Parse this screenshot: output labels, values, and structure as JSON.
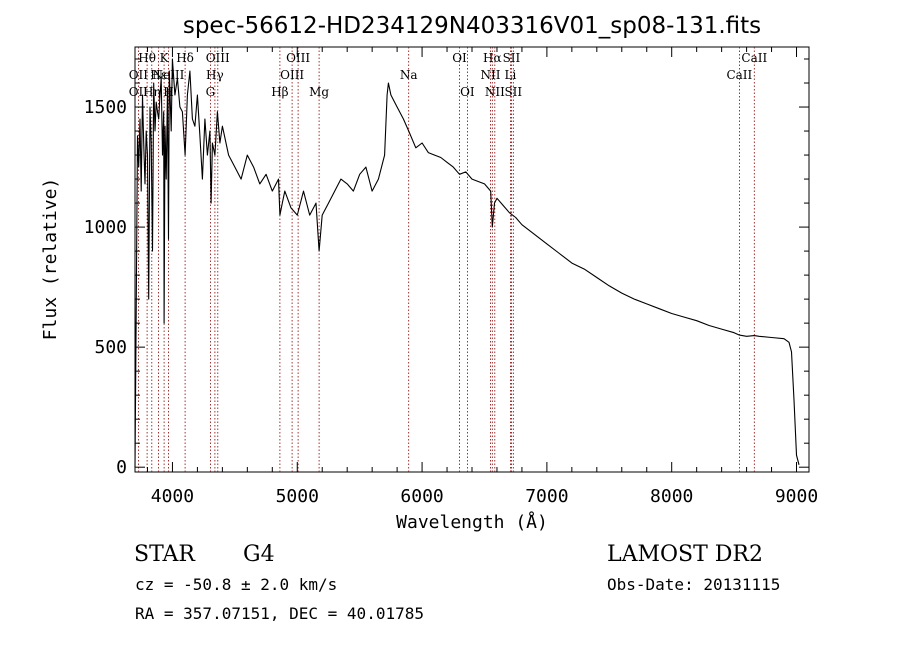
{
  "chart_data": {
    "type": "line",
    "title": "spec-56612-HD234129N403316V01_sp08-131.fits",
    "xlabel": "Wavelength (Å)",
    "ylabel": "Flux (relative)",
    "xlim": [
      3700,
      9100
    ],
    "ylim": [
      -20,
      1750
    ],
    "xticks": [
      4000,
      5000,
      6000,
      7000,
      8000,
      9000
    ],
    "yticks": [
      0,
      500,
      1000,
      1500
    ],
    "grid": false,
    "colors": {
      "line": "#000000",
      "marker": "#8b0000",
      "text": "#000000"
    },
    "series": [
      {
        "x": [
          3700,
          3710,
          3720,
          3730,
          3740,
          3750,
          3760,
          3770,
          3780,
          3790,
          3800,
          3810,
          3820,
          3830,
          3840,
          3850,
          3860,
          3870,
          3880,
          3890,
          3900,
          3910,
          3920,
          3930,
          3933,
          3940,
          3950,
          3960,
          3968,
          3975,
          3990,
          4000,
          4020,
          4040,
          4060,
          4080,
          4101,
          4120,
          4140,
          4160,
          4180,
          4200,
          4220,
          4240,
          4260,
          4280,
          4300,
          4310,
          4320,
          4340,
          4360,
          4380,
          4400,
          4450,
          4500,
          4550,
          4600,
          4650,
          4700,
          4750,
          4800,
          4850,
          4861,
          4880,
          4900,
          4950,
          5000,
          5050,
          5100,
          5150,
          5175,
          5200,
          5250,
          5300,
          5350,
          5400,
          5450,
          5500,
          5550,
          5600,
          5650,
          5700,
          5720,
          5730,
          5750,
          5800,
          5850,
          5893,
          5950,
          6000,
          6050,
          6100,
          6150,
          6200,
          6250,
          6300,
          6350,
          6400,
          6450,
          6500,
          6550,
          6563,
          6580,
          6600,
          6650,
          6700,
          6750,
          6800,
          6900,
          7000,
          7100,
          7200,
          7300,
          7400,
          7500,
          7600,
          7700,
          7800,
          7900,
          8000,
          8100,
          8200,
          8300,
          8400,
          8500,
          8542,
          8600,
          8662,
          8700,
          8800,
          8900,
          8940,
          8960,
          8980,
          9000,
          9020
        ],
        "y": [
          0,
          650,
          1380,
          1250,
          1450,
          1150,
          1550,
          1350,
          1180,
          1400,
          1300,
          700,
          1500,
          1350,
          900,
          1600,
          1400,
          1520,
          1480,
          1450,
          1550,
          1620,
          1300,
          1480,
          600,
          1420,
          1200,
          1580,
          950,
          1650,
          1400,
          1700,
          1550,
          1620,
          1500,
          1480,
          1300,
          1550,
          1650,
          1450,
          1420,
          1550,
          1380,
          1200,
          1450,
          1300,
          1400,
          1100,
          1350,
          1300,
          1480,
          1350,
          1420,
          1300,
          1250,
          1200,
          1300,
          1250,
          1180,
          1220,
          1150,
          1200,
          1050,
          1100,
          1150,
          1080,
          1050,
          1150,
          1050,
          1100,
          900,
          1050,
          1100,
          1150,
          1200,
          1180,
          1150,
          1220,
          1250,
          1150,
          1200,
          1300,
          1550,
          1600,
          1550,
          1500,
          1450,
          1400,
          1330,
          1350,
          1310,
          1300,
          1290,
          1270,
          1250,
          1220,
          1230,
          1200,
          1190,
          1180,
          1150,
          1000,
          1100,
          1120,
          1090,
          1060,
          1040,
          1010,
          970,
          930,
          890,
          850,
          825,
          790,
          755,
          725,
          700,
          680,
          660,
          640,
          625,
          610,
          590,
          575,
          560,
          550,
          545,
          548,
          545,
          540,
          535,
          520,
          480,
          280,
          50,
          10
        ]
      }
    ],
    "spectral_lines": [
      {
        "label": "Hθ",
        "wavelength": 3797,
        "row": 1
      },
      {
        "label": "OII",
        "wavelength": 3727,
        "row": 2
      },
      {
        "label": "OII",
        "wavelength": 3727,
        "row": 3
      },
      {
        "label": "Hη",
        "wavelength": 3835,
        "row": 3
      },
      {
        "label": "K",
        "wavelength": 3933,
        "row": 1
      },
      {
        "label": "Hε",
        "wavelength": 3889,
        "row": 2
      },
      {
        "label": "H",
        "wavelength": 3968,
        "row": 3
      },
      {
        "label": "NeIII",
        "wavelength": 3968,
        "row": 2
      },
      {
        "label": "Hδ",
        "wavelength": 4101,
        "row": 1
      },
      {
        "label": "OIII",
        "wavelength": 4363,
        "row": 1
      },
      {
        "label": "Hγ",
        "wavelength": 4340,
        "row": 2
      },
      {
        "label": "G",
        "wavelength": 4304,
        "row": 3
      },
      {
        "label": "Hβ",
        "wavelength": 4861,
        "row": 3
      },
      {
        "label": "OIII",
        "wavelength": 5007,
        "row": 1
      },
      {
        "label": "OIII",
        "wavelength": 4959,
        "row": 2
      },
      {
        "label": "Mg",
        "wavelength": 5175,
        "row": 3
      },
      {
        "label": "Na",
        "wavelength": 5893,
        "row": 2
      },
      {
        "label": "OI",
        "wavelength": 6300,
        "row": 1
      },
      {
        "label": "OI",
        "wavelength": 6363,
        "row": 3
      },
      {
        "label": "Hα",
        "wavelength": 6563,
        "row": 1
      },
      {
        "label": "SII",
        "wavelength": 6716,
        "row": 1
      },
      {
        "label": "NII",
        "wavelength": 6548,
        "row": 2
      },
      {
        "label": "Li",
        "wavelength": 6708,
        "row": 2
      },
      {
        "label": "NII",
        "wavelength": 6583,
        "row": 3
      },
      {
        "label": "SII",
        "wavelength": 6731,
        "row": 3
      },
      {
        "label": "CaII",
        "wavelength": 8662,
        "row": 1
      },
      {
        "label": "CaII",
        "wavelength": 8542,
        "row": 2
      }
    ],
    "line_markers": [
      3727,
      3797,
      3835,
      3889,
      3933,
      3968,
      4101,
      4304,
      4340,
      4363,
      4861,
      4959,
      5007,
      5175,
      5893,
      6300,
      6363,
      6548,
      6563,
      6583,
      6708,
      6716,
      6731,
      8542,
      8662
    ]
  },
  "info": {
    "class": "STAR",
    "subclass": "G4",
    "survey": "LAMOST DR2",
    "cz": "cz = -50.8 ± 2.0 km/s",
    "obs_date": "Obs-Date: 20131115",
    "radec": "RA = 357.07151, DEC =  40.01785"
  }
}
